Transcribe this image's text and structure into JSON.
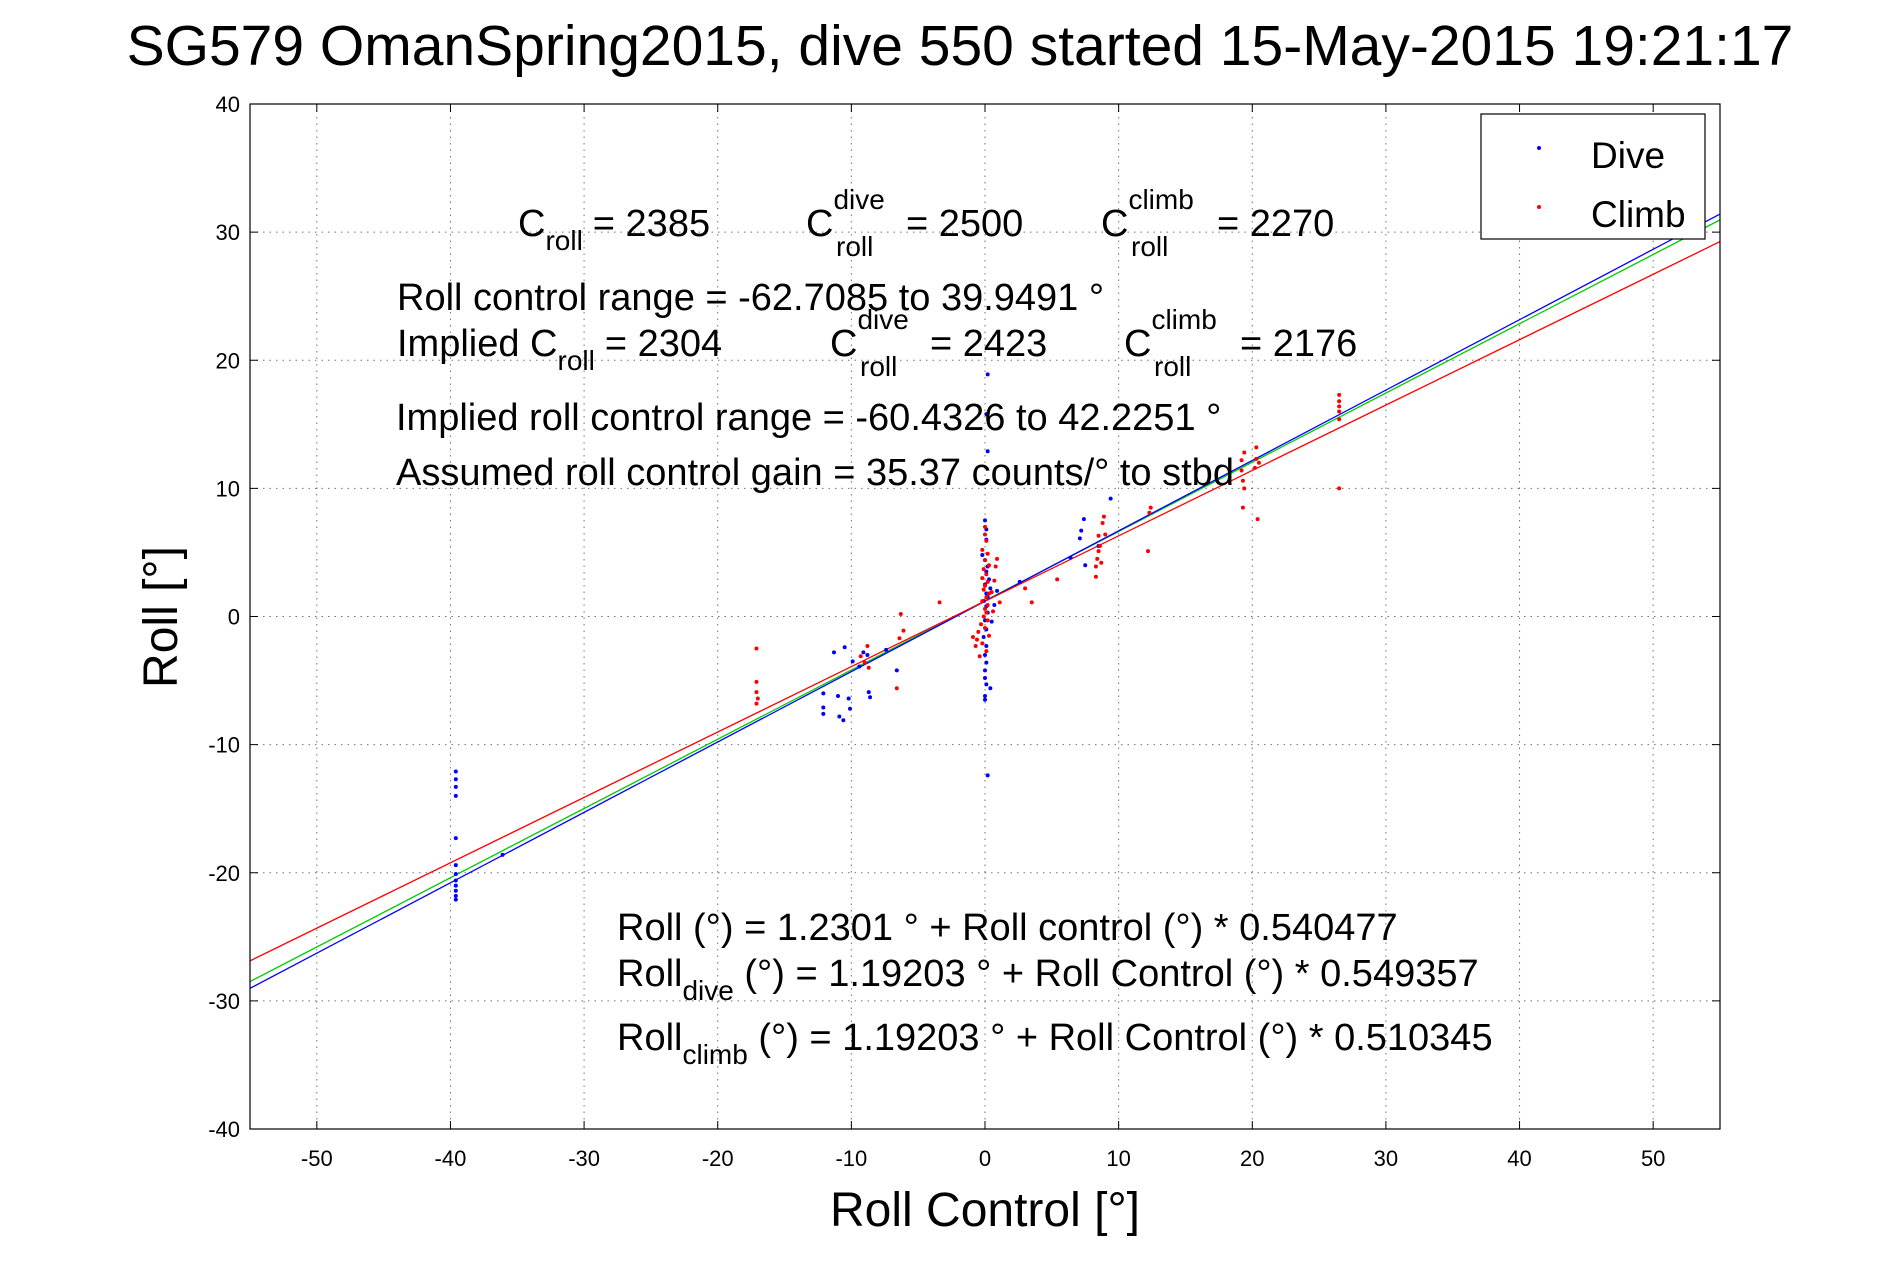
{
  "chart_data": {
    "type": "scatter",
    "title": "SG579 OmanSpring2015, dive 550 started 15-May-2015 19:21:17",
    "xlabel": "Roll Control [°]",
    "ylabel": "Roll [°]",
    "xlim": [
      -55,
      55
    ],
    "ylim": [
      -40,
      40
    ],
    "xticks": [
      -50,
      -40,
      -30,
      -20,
      -10,
      0,
      10,
      20,
      30,
      40,
      50
    ],
    "yticks": [
      -40,
      -30,
      -20,
      -10,
      0,
      10,
      20,
      30,
      40
    ],
    "xtick_labels": [
      "-50",
      "-40",
      "-30",
      "-20",
      "-10",
      "0",
      "10",
      "20",
      "30",
      "40",
      "50"
    ],
    "ytick_labels": [
      "-40",
      "-30",
      "-20",
      "-10",
      "0",
      "10",
      "20",
      "30",
      "40"
    ],
    "grid": true,
    "legend_position": "top-right",
    "colors": {
      "dive": "#0000ff",
      "climb": "#ff0000",
      "overall_fit": "#00cc00"
    },
    "series": [
      {
        "name": "Dive",
        "color": "#0000ff",
        "points": [
          [
            -39.6,
            -12.1
          ],
          [
            -39.6,
            -12.7
          ],
          [
            -39.6,
            -13.3
          ],
          [
            -39.6,
            -14.0
          ],
          [
            -39.6,
            -17.3
          ],
          [
            -39.6,
            -19.4
          ],
          [
            -39.6,
            -20.1
          ],
          [
            -39.6,
            -20.6
          ],
          [
            -39.6,
            -21.0
          ],
          [
            -39.6,
            -21.4
          ],
          [
            -39.6,
            -21.8
          ],
          [
            -39.6,
            -22.1
          ],
          [
            -36.1,
            -18.6
          ],
          [
            -12.1,
            -6.0
          ],
          [
            -12.1,
            -7.1
          ],
          [
            -12.1,
            -7.6
          ],
          [
            -11.3,
            -2.8
          ],
          [
            -11.0,
            -6.2
          ],
          [
            -10.9,
            -7.8
          ],
          [
            -10.6,
            -8.1
          ],
          [
            -10.5,
            -2.4
          ],
          [
            -10.2,
            -6.4
          ],
          [
            -10.1,
            -7.2
          ],
          [
            -9.9,
            -3.5
          ],
          [
            -9.4,
            -3.9
          ],
          [
            -9.1,
            -2.8
          ],
          [
            -8.8,
            -3.0
          ],
          [
            -8.7,
            -5.9
          ],
          [
            -8.6,
            -6.3
          ],
          [
            -7.4,
            -2.6
          ],
          [
            -6.6,
            -4.2
          ],
          [
            0.2,
            -12.4
          ],
          [
            0.2,
            18.9
          ],
          [
            0.1,
            15.8
          ],
          [
            0.2,
            12.9
          ],
          [
            0.0,
            7.5
          ],
          [
            0.1,
            6.8
          ],
          [
            0.1,
            6.0
          ],
          [
            -0.2,
            4.8
          ],
          [
            0.0,
            4.4
          ],
          [
            0.2,
            3.9
          ],
          [
            0.1,
            3.5
          ],
          [
            0.3,
            2.9
          ],
          [
            0.0,
            2.5
          ],
          [
            0.4,
            2.2
          ],
          [
            0.1,
            1.8
          ],
          [
            0.2,
            1.5
          ],
          [
            -0.1,
            1.2
          ],
          [
            0.1,
            0.8
          ],
          [
            0.2,
            0.3
          ],
          [
            0.0,
            -0.3
          ],
          [
            0.1,
            -1.0
          ],
          [
            -0.1,
            -1.6
          ],
          [
            0.1,
            -2.3
          ],
          [
            0.0,
            -3.0
          ],
          [
            0.1,
            -3.6
          ],
          [
            0.0,
            -4.2
          ],
          [
            0.0,
            -4.8
          ],
          [
            0.1,
            -5.3
          ],
          [
            0.4,
            -5.6
          ],
          [
            0.0,
            -6.2
          ],
          [
            0.0,
            -6.5
          ],
          [
            0.9,
            2.0
          ],
          [
            0.7,
            0.9
          ],
          [
            0.5,
            -0.4
          ],
          [
            2.6,
            2.7
          ],
          [
            6.4,
            4.6
          ],
          [
            7.1,
            6.1
          ],
          [
            7.2,
            6.7
          ],
          [
            7.4,
            7.6
          ],
          [
            7.5,
            4.0
          ],
          [
            9.4,
            9.2
          ],
          [
            8.5,
            5.5
          ]
        ]
      },
      {
        "name": "Climb",
        "color": "#ff0000",
        "points": [
          [
            -17.1,
            -2.5
          ],
          [
            -17.1,
            -5.1
          ],
          [
            -17.1,
            -5.9
          ],
          [
            -17.0,
            -6.4
          ],
          [
            -17.1,
            -6.8
          ],
          [
            -9.3,
            -3.1
          ],
          [
            -9.0,
            -3.6
          ],
          [
            -8.8,
            -2.3
          ],
          [
            -8.7,
            -4.0
          ],
          [
            -6.6,
            -5.6
          ],
          [
            -6.4,
            -1.7
          ],
          [
            -6.3,
            0.2
          ],
          [
            -6.1,
            -1.1
          ],
          [
            -3.4,
            1.1
          ],
          [
            0.0,
            7.0
          ],
          [
            0.0,
            6.4
          ],
          [
            0.1,
            5.9
          ],
          [
            -0.2,
            5.2
          ],
          [
            0.2,
            4.9
          ],
          [
            0.0,
            4.4
          ],
          [
            0.3,
            4.0
          ],
          [
            -0.1,
            3.7
          ],
          [
            0.1,
            3.3
          ],
          [
            -0.2,
            3.0
          ],
          [
            0.2,
            2.7
          ],
          [
            0.0,
            2.4
          ],
          [
            -0.1,
            2.1
          ],
          [
            0.3,
            1.8
          ],
          [
            0.1,
            1.5
          ],
          [
            -0.2,
            1.2
          ],
          [
            0.2,
            0.9
          ],
          [
            0.0,
            0.6
          ],
          [
            0.1,
            0.3
          ],
          [
            -0.1,
            0.0
          ],
          [
            0.2,
            -0.3
          ],
          [
            -0.3,
            -0.6
          ],
          [
            0.0,
            -0.9
          ],
          [
            -0.5,
            -1.2
          ],
          [
            0.3,
            -1.5
          ],
          [
            -0.6,
            -1.8
          ],
          [
            -0.2,
            -2.1
          ],
          [
            -0.9,
            -1.6
          ],
          [
            -0.7,
            -2.3
          ],
          [
            0.1,
            -2.7
          ],
          [
            -0.4,
            -3.1
          ],
          [
            0.6,
            0.4
          ],
          [
            0.9,
            4.5
          ],
          [
            0.8,
            3.9
          ],
          [
            0.7,
            2.8
          ],
          [
            0.5,
            1.9
          ],
          [
            1.1,
            1.1
          ],
          [
            3.0,
            2.2
          ],
          [
            3.5,
            1.1
          ],
          [
            5.4,
            2.9
          ],
          [
            8.3,
            3.1
          ],
          [
            8.3,
            3.9
          ],
          [
            8.4,
            4.5
          ],
          [
            8.5,
            5.1
          ],
          [
            8.6,
            5.5
          ],
          [
            8.5,
            6.3
          ],
          [
            8.7,
            4.2
          ],
          [
            8.8,
            7.3
          ],
          [
            8.9,
            7.8
          ],
          [
            9.0,
            6.4
          ],
          [
            12.2,
            5.1
          ],
          [
            12.3,
            8.1
          ],
          [
            12.4,
            8.5
          ],
          [
            19.2,
            12.2
          ],
          [
            19.2,
            11.4
          ],
          [
            19.3,
            10.6
          ],
          [
            19.4,
            10.0
          ],
          [
            19.3,
            8.5
          ],
          [
            19.4,
            12.8
          ],
          [
            20.2,
            11.6
          ],
          [
            20.3,
            12.3
          ],
          [
            20.3,
            13.2
          ],
          [
            20.5,
            12.0
          ],
          [
            20.4,
            7.6
          ],
          [
            26.5,
            16.0
          ],
          [
            26.5,
            16.4
          ],
          [
            26.5,
            16.8
          ],
          [
            26.5,
            17.3
          ],
          [
            26.5,
            15.4
          ],
          [
            26.5,
            10.0
          ]
        ]
      }
    ],
    "fit_lines": [
      {
        "name": "overall fit",
        "color": "#00cc00",
        "intercept": 1.2301,
        "slope": 0.540477
      },
      {
        "name": "dive fit",
        "color": "#0000ff",
        "intercept": 1.19203,
        "slope": 0.549357
      },
      {
        "name": "climb fit",
        "color": "#ff0000",
        "intercept": 1.19203,
        "slope": 0.510345
      }
    ],
    "legend": [
      {
        "label": "Dive",
        "color": "#0000ff"
      },
      {
        "label": "Climb",
        "color": "#ff0000"
      }
    ],
    "annotations": {
      "c_roll": {
        "base": "C",
        "sub": "roll",
        "value": "= 2385"
      },
      "c_roll_dive": {
        "base": "C",
        "sup": "dive",
        "sub": "roll",
        "value": "= 2500"
      },
      "c_roll_climb": {
        "base": "C",
        "sup": "climb",
        "sub": "roll",
        "value": "= 2270"
      },
      "range": "Roll control range = -62.7085 to 39.9491 °",
      "implied_prefix": "Implied C",
      "implied_sub": "roll",
      "implied_value": "= 2304",
      "implied_dive": {
        "base": "C",
        "sup": "dive",
        "sub": "roll",
        "value": "= 2423"
      },
      "implied_climb": {
        "base": "C",
        "sup": "climb",
        "sub": "roll",
        "value": "= 2176"
      },
      "implied_range": "Implied roll control range = -60.4326 to 42.2251 °",
      "gain": "Assumed roll control gain = 35.37 counts/° to stbd",
      "eq_overall": "Roll (°) = 1.2301 ° + Roll control (°) * 0.540477",
      "eq_dive_base": "Roll",
      "eq_dive_sub": "dive",
      "eq_dive_rest": " (°) = 1.19203 ° + Roll Control (°) * 0.549357",
      "eq_climb_base": "Roll",
      "eq_climb_sub": "climb",
      "eq_climb_rest": " (°) = 1.19203 ° + Roll Control (°) * 0.510345"
    }
  }
}
